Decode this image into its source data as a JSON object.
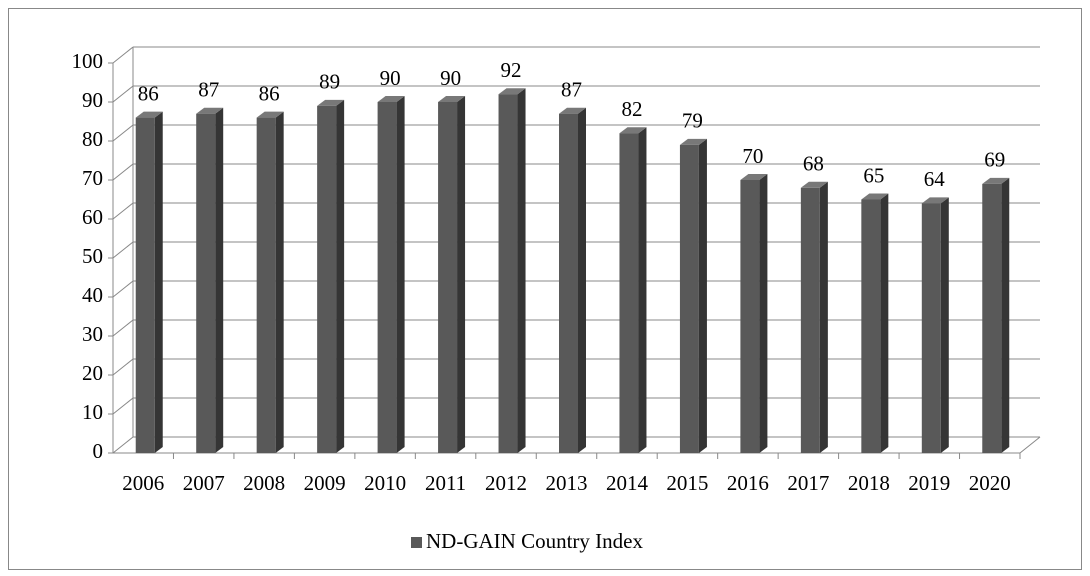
{
  "chart_data": {
    "type": "bar",
    "categories": [
      "2006",
      "2007",
      "2008",
      "2009",
      "2010",
      "2011",
      "2012",
      "2013",
      "2014",
      "2015",
      "2016",
      "2017",
      "2018",
      "2019",
      "2020"
    ],
    "series": [
      {
        "name": "ND-GAIN Country Index",
        "color": "#595959",
        "values": [
          86,
          87,
          86,
          89,
          90,
          90,
          92,
          87,
          82,
          79,
          70,
          68,
          65,
          64,
          69
        ]
      }
    ],
    "ylim": [
      0,
      100
    ],
    "yticks": [
      0,
      10,
      20,
      30,
      40,
      50,
      60,
      70,
      80,
      90,
      100
    ],
    "grid": true
  }
}
